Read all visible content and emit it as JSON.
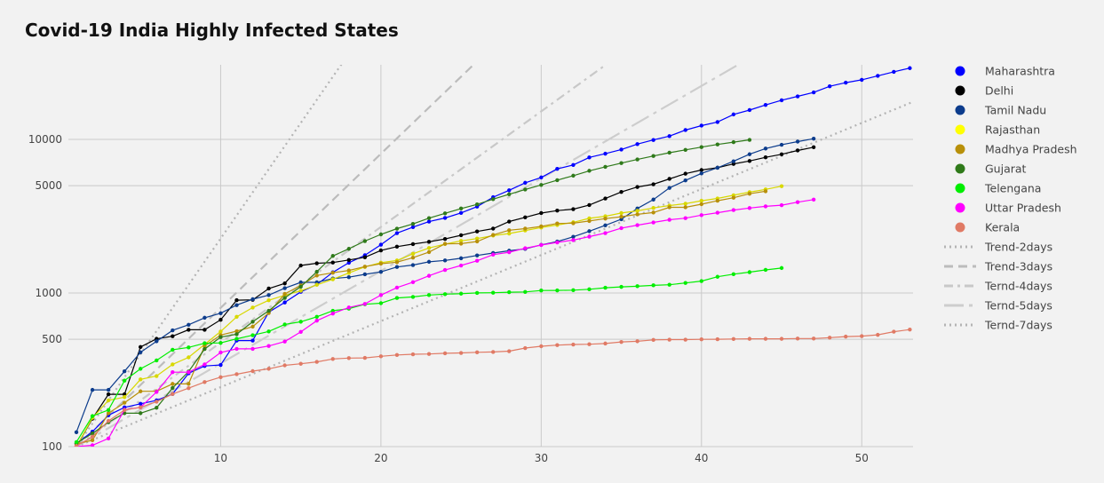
{
  "chart_data": {
    "type": "line",
    "title": "Covid-19 India Highly Infected States",
    "xlabel": "",
    "ylabel": "",
    "x_range": [
      0.5,
      53.2
    ],
    "y_range": [
      100,
      30000
    ],
    "y_scale": "log",
    "x_ticks": [
      10,
      20,
      30,
      40,
      50
    ],
    "y_ticks": [
      100,
      500,
      1000,
      5000,
      10000
    ],
    "y_tick_labels": [
      "100",
      "500",
      "1000",
      "5000",
      "10000"
    ],
    "grid": true,
    "legend_position": "right",
    "series": [
      {
        "name": "Maharashtra",
        "color": "#0000ff",
        "line": "#0000ff",
        "x": [
          1,
          2,
          3,
          4,
          5,
          6,
          7,
          8,
          9,
          10,
          11,
          12,
          13,
          14,
          15,
          16,
          17,
          18,
          19,
          20,
          21,
          22,
          23,
          24,
          25,
          26,
          27,
          28,
          29,
          30,
          31,
          32,
          33,
          34,
          35,
          36,
          37,
          38,
          39,
          40,
          41,
          42,
          43,
          44,
          45,
          46,
          47,
          48,
          49,
          50,
          51,
          52,
          53
        ],
        "y": [
          105,
          125,
          160,
          180,
          190,
          200,
          220,
          300,
          335,
          340,
          490,
          490,
          750,
          868,
          1018,
          1135,
          1364,
          1574,
          1761,
          2064,
          2455,
          2684,
          2916,
          3081,
          3323,
          3651,
          4203,
          4666,
          5218,
          5652,
          6430,
          6817,
          7628,
          8068,
          8590,
          9318,
          9915,
          10498,
          11506,
          12296,
          12974,
          14541,
          15525,
          16758,
          17974,
          19063,
          20228,
          22171,
          23401,
          24427,
          25922,
          27524,
          29100
        ]
      },
      {
        "name": "Delhi",
        "color": "#000000",
        "line": "#000000",
        "x": [
          1,
          2,
          3,
          4,
          5,
          6,
          7,
          8,
          9,
          10,
          11,
          12,
          13,
          14,
          15,
          16,
          17,
          18,
          19,
          20,
          21,
          22,
          23,
          24,
          25,
          26,
          27,
          28,
          29,
          30,
          31,
          32,
          33,
          34,
          35,
          36,
          37,
          38,
          39,
          40,
          41,
          42,
          43,
          44,
          45,
          46,
          47
        ],
        "y": [
          100,
          152,
          219,
          219,
          445,
          503,
          523,
          576,
          576,
          669,
          898,
          903,
          1069,
          1154,
          1510,
          1561,
          1578,
          1640,
          1707,
          1893,
          2003,
          2081,
          2156,
          2248,
          2376,
          2514,
          2625,
          2918,
          3108,
          3314,
          3439,
          3515,
          3738,
          4122,
          4549,
          4898,
          5104,
          5532,
          5980,
          6318,
          6542,
          6923,
          7233,
          7639,
          7998,
          8470,
          8895
        ]
      },
      {
        "name": "Tamil Nadu",
        "color": "#0c3c8c",
        "line": "#0c3c8c",
        "x": [
          1,
          2,
          3,
          4,
          5,
          6,
          7,
          8,
          9,
          10,
          11,
          12,
          13,
          14,
          15,
          16,
          17,
          18,
          19,
          20,
          21,
          22,
          23,
          24,
          25,
          26,
          27,
          28,
          29,
          30,
          31,
          32,
          33,
          34,
          35,
          36,
          37,
          38,
          39,
          40,
          41,
          42,
          43,
          44,
          45,
          46,
          47
        ],
        "y": [
          124,
          234,
          234,
          309,
          411,
          485,
          571,
          621,
          690,
          738,
          834,
          911,
          969,
          1075,
          1173,
          1173,
          1242,
          1267,
          1323,
          1372,
          1477,
          1520,
          1596,
          1629,
          1683,
          1755,
          1821,
          1885,
          1937,
          2058,
          2162,
          2323,
          2526,
          2757,
          3023,
          3550,
          4058,
          4829,
          5409,
          6009,
          6535,
          7204,
          8002,
          8718,
          9227,
          9674,
          10108
        ]
      },
      {
        "name": "Rajasthan",
        "color": "#ffff00",
        "line": "#d8d800",
        "x": [
          1,
          2,
          3,
          4,
          5,
          6,
          7,
          8,
          9,
          10,
          11,
          12,
          13,
          14,
          15,
          16,
          17,
          18,
          19,
          20,
          21,
          22,
          23,
          24,
          25,
          26,
          27,
          28,
          29,
          30,
          31,
          32,
          33,
          34,
          35,
          36,
          37,
          38,
          39,
          40,
          41,
          42,
          43,
          44,
          45
        ],
        "y": [
          100,
          154,
          200,
          210,
          274,
          288,
          343,
          381,
          463,
          561,
          700,
          804,
          897,
          966,
          1034,
          1131,
          1229,
          1351,
          1478,
          1576,
          1628,
          1801,
          1964,
          2083,
          2185,
          2262,
          2364,
          2438,
          2553,
          2666,
          2772,
          2886,
          3061,
          3158,
          3317,
          3427,
          3579,
          3708,
          3814,
          3988,
          4126,
          4327,
          4534,
          4727,
          4960
        ]
      },
      {
        "name": "Madhya Pradesh",
        "color": "#b8900a",
        "line": "#b8900a",
        "x": [
          1,
          2,
          3,
          4,
          5,
          6,
          7,
          8,
          9,
          10,
          11,
          12,
          13,
          14,
          15,
          16,
          17,
          18,
          19,
          20,
          21,
          22,
          23,
          24,
          25,
          26,
          27,
          28,
          29,
          30,
          31,
          32,
          33,
          34,
          35,
          36,
          37,
          38,
          39,
          40,
          41,
          42,
          43,
          44
        ],
        "y": [
          104,
          110,
          165,
          193,
          229,
          229,
          256,
          256,
          451,
          532,
          564,
          604,
          741,
          987,
          1120,
          1299,
          1355,
          1402,
          1485,
          1552,
          1587,
          1699,
          1846,
          2090,
          2096,
          2165,
          2387,
          2561,
          2625,
          2715,
          2837,
          2846,
          2942,
          3049,
          3138,
          3252,
          3341,
          3614,
          3614,
          3785,
          3986,
          4173,
          4426,
          4595
        ]
      },
      {
        "name": "Gujarat",
        "color": "#2f7a1a",
        "line": "#2f7a1a",
        "x": [
          1,
          2,
          3,
          4,
          5,
          6,
          7,
          8,
          9,
          10,
          11,
          12,
          13,
          14,
          15,
          16,
          17,
          18,
          19,
          20,
          21,
          22,
          23,
          24,
          25,
          26,
          27,
          28,
          29,
          30,
          31,
          32,
          33,
          34,
          35,
          36,
          37,
          38,
          39,
          40,
          41,
          42,
          43
        ],
        "y": [
          105,
          122,
          144,
          165,
          165,
          179,
          241,
          308,
          432,
          516,
          539,
          650,
          766,
          929,
          1099,
          1376,
          1743,
          1939,
          2178,
          2407,
          2624,
          2815,
          3071,
          3301,
          3548,
          3774,
          4082,
          4395,
          4721,
          5054,
          5428,
          5804,
          6245,
          6625,
          7012,
          7403,
          7796,
          8195,
          8541,
          8904,
          9268,
          9592,
          9931
        ]
      },
      {
        "name": "Telengana",
        "color": "#00ee00",
        "line": "#00ee00",
        "x": [
          1,
          2,
          3,
          4,
          5,
          6,
          7,
          8,
          9,
          10,
          11,
          12,
          13,
          14,
          15,
          16,
          17,
          18,
          19,
          20,
          21,
          22,
          23,
          24,
          25,
          26,
          27,
          28,
          29,
          30,
          31,
          32,
          33,
          34,
          35,
          36,
          37,
          38,
          39,
          40,
          41,
          42,
          43,
          44,
          45
        ],
        "y": [
          107,
          158,
          173,
          269,
          321,
          364,
          427,
          442,
          471,
          473,
          503,
          531,
          562,
          624,
          650,
          700,
          766,
          791,
          844,
          858,
          928,
          943,
          970,
          983,
          990,
          1001,
          1004,
          1012,
          1016,
          1038,
          1039,
          1044,
          1057,
          1082,
          1096,
          1107,
          1122,
          1132,
          1163,
          1196,
          1275,
          1326,
          1367,
          1414,
          1454
        ]
      },
      {
        "name": "Uttar Pradesh",
        "color": "#ff00ff",
        "line": "#ff00ff",
        "x": [
          1,
          2,
          3,
          4,
          5,
          6,
          7,
          8,
          9,
          10,
          11,
          12,
          13,
          14,
          15,
          16,
          17,
          18,
          19,
          20,
          21,
          22,
          23,
          24,
          25,
          26,
          27,
          28,
          29,
          30,
          31,
          32,
          33,
          34,
          35,
          36,
          37,
          38,
          39,
          40,
          41,
          42,
          43,
          44,
          45,
          46,
          47
        ],
        "y": [
          100,
          102,
          113,
          174,
          180,
          227,
          305,
          305,
          343,
          410,
          433,
          433,
          452,
          483,
          558,
          660,
          735,
          805,
          849,
          969,
          1084,
          1176,
          1294,
          1412,
          1510,
          1621,
          1778,
          1843,
          1955,
          2053,
          2134,
          2211,
          2328,
          2455,
          2645,
          2766,
          2880,
          2998,
          3071,
          3214,
          3331,
          3467,
          3573,
          3664,
          3729,
          3902,
          4057
        ]
      },
      {
        "name": "Kerala",
        "color": "#e07a65",
        "line": "#e07a65",
        "x": [
          1,
          2,
          3,
          4,
          5,
          6,
          7,
          8,
          9,
          10,
          11,
          12,
          13,
          14,
          15,
          16,
          17,
          18,
          19,
          20,
          21,
          22,
          23,
          24,
          25,
          26,
          27,
          28,
          29,
          30,
          31,
          32,
          33,
          34,
          35,
          36,
          37,
          38,
          39,
          40,
          41,
          42,
          43,
          44,
          45,
          46,
          47,
          48,
          49,
          50,
          51,
          52,
          53
        ],
        "y": [
          101,
          116,
          147,
          173,
          180,
          196,
          220,
          240,
          263,
          283,
          296,
          310,
          321,
          338,
          346,
          356,
          372,
          377,
          378,
          387,
          395,
          399,
          401,
          405,
          407,
          411,
          413,
          418,
          438,
          450,
          458,
          462,
          464,
          469,
          480,
          485,
          495,
          497,
          497,
          499,
          500,
          502,
          503,
          503,
          503,
          505,
          505,
          512,
          520,
          524,
          534,
          560,
          578
        ]
      }
    ],
    "trend_lines": [
      {
        "name": "Trend-2days",
        "color": "#b4b4b4",
        "style": "dot",
        "doubling_days": 2
      },
      {
        "name": "Trend-3days",
        "color": "#bcbcbc",
        "style": "dash",
        "doubling_days": 3
      },
      {
        "name": "Ternd-4days",
        "color": "#c8c8c8",
        "style": "dashdot",
        "doubling_days": 4
      },
      {
        "name": "Ternd-5days",
        "color": "#cdcdcd",
        "style": "longdashdot",
        "doubling_days": 5
      },
      {
        "name": "Ternd-7days",
        "color": "#b4b4b4",
        "style": "dot",
        "doubling_days": 7
      }
    ]
  }
}
